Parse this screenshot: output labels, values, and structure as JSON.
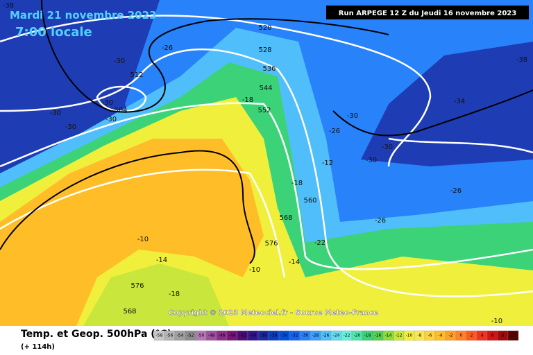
{
  "header": {
    "valid_date": "Mardi 21 novembre 2023",
    "valid_time": "7:00 locale",
    "run": "Run ARPEGE 12 Z du Jeudi 16 novembre 2023"
  },
  "copyright": "Copyright © 2023 Meteociel.fr - Source Meteo-France",
  "footer": {
    "title": "Temp. et Geop. 500hPa (°C)",
    "lead": "(+ 114h)"
  },
  "contour_labels": [
    520,
    528,
    536,
    544,
    552,
    560,
    568,
    576,
    512,
    504,
    576,
    568,
    -38,
    -38,
    -34,
    -26,
    -30,
    -30,
    -30,
    -30,
    -30,
    -30,
    -30,
    -30,
    -26,
    -26,
    -26,
    -18,
    -18,
    -22,
    -14,
    -18,
    -10,
    -10,
    -14,
    -10,
    -12
  ],
  "scale": {
    "labels": [
      -58,
      -56,
      -54,
      -52,
      -50,
      -48,
      -46,
      -44,
      -42,
      -40,
      -38,
      -36,
      -34,
      -32,
      -30,
      -28,
      -26,
      -24,
      -22,
      -20,
      -18,
      -16,
      -14,
      -12,
      -10,
      -8,
      -6,
      -4,
      -2,
      0,
      2,
      4,
      6,
      8,
      10
    ],
    "colors": [
      "#c8c8c8",
      "#b4b4b4",
      "#a0a0a0",
      "#8c8c8c",
      "#b478b4",
      "#a050a0",
      "#8c2d8c",
      "#78147a",
      "#500a78",
      "#32148c",
      "#1e28a0",
      "#0a3cbe",
      "#0050dc",
      "#1464f0",
      "#2882fa",
      "#3ca0ff",
      "#50befa",
      "#64dcf0",
      "#64f0dc",
      "#50e6aa",
      "#3cd278",
      "#50d250",
      "#8cdc3c",
      "#c8e63c",
      "#f0f03c",
      "#fae650",
      "#ffd23c",
      "#ffbe28",
      "#ffa028",
      "#ff8228",
      "#ff5a1e",
      "#f0321e",
      "#d21414",
      "#a00a0a",
      "#5a0000"
    ]
  }
}
